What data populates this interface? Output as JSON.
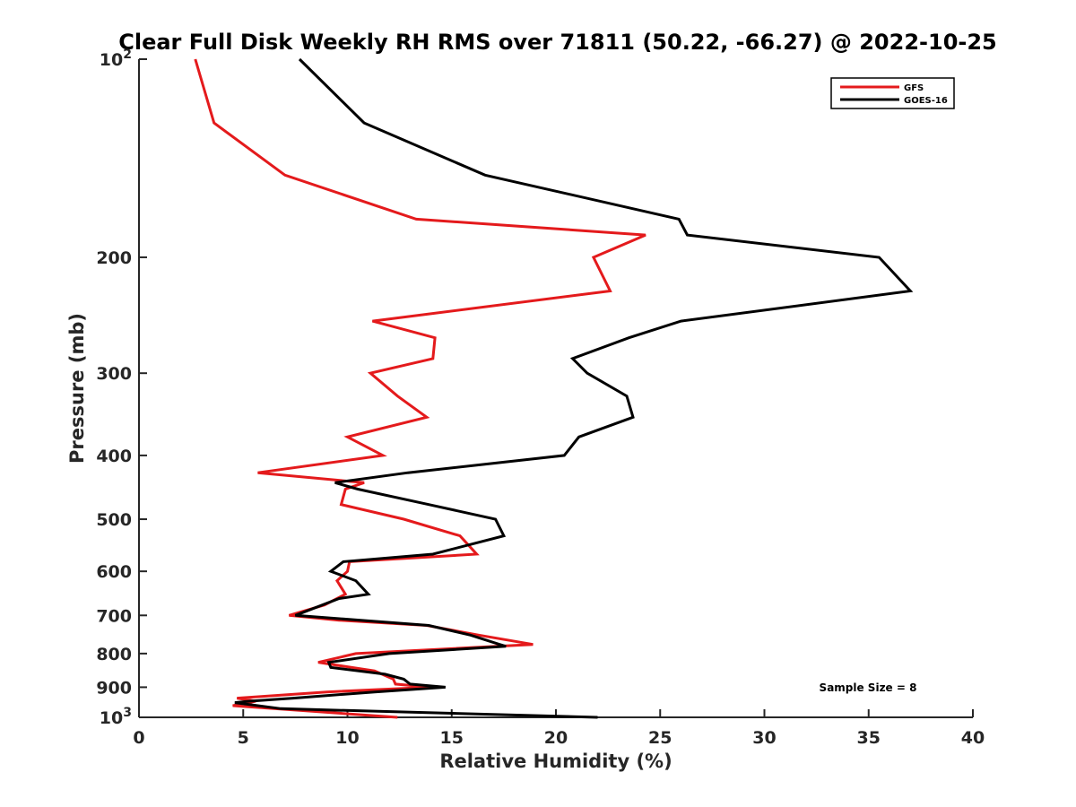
{
  "chart_data": {
    "type": "line",
    "title": "Clear Full Disk Weekly RH RMS over 71811 (50.22, -66.27) @ 2022-10-25",
    "xlabel": "Relative Humidity (%)",
    "ylabel": "Pressure (mb)",
    "xlim": [
      0,
      40
    ],
    "ylim": [
      100,
      1000
    ],
    "y_scale": "log",
    "y_reversed": true,
    "x_ticks": [
      "0",
      "5",
      "10",
      "15",
      "20",
      "25",
      "30",
      "35",
      "40"
    ],
    "y_ticks": [
      {
        "value": 100,
        "base": "10",
        "exp": "2"
      },
      {
        "value": 200,
        "label": "200"
      },
      {
        "value": 300,
        "label": "300"
      },
      {
        "value": 400,
        "label": "400"
      },
      {
        "value": 500,
        "label": "500"
      },
      {
        "value": 600,
        "label": "600"
      },
      {
        "value": 700,
        "label": "700"
      },
      {
        "value": 800,
        "label": "800"
      },
      {
        "value": 900,
        "label": "900"
      },
      {
        "value": 1000,
        "base": "10",
        "exp": "3"
      }
    ],
    "legend_position": "top-right",
    "annotation": "Sample Size = 8",
    "series": [
      {
        "name": "GFS",
        "color": "#e41a1c",
        "points": [
          [
            2.7,
            100
          ],
          [
            3.6,
            125
          ],
          [
            7.0,
            150
          ],
          [
            13.3,
            175
          ],
          [
            24.3,
            185
          ],
          [
            21.8,
            200
          ],
          [
            22.6,
            225
          ],
          [
            11.2,
            250
          ],
          [
            14.2,
            265
          ],
          [
            14.1,
            285
          ],
          [
            11.1,
            300
          ],
          [
            12.4,
            325
          ],
          [
            13.8,
            350
          ],
          [
            10.0,
            375
          ],
          [
            11.7,
            400
          ],
          [
            5.7,
            425
          ],
          [
            10.8,
            440
          ],
          [
            9.9,
            450
          ],
          [
            9.7,
            475
          ],
          [
            12.7,
            500
          ],
          [
            15.4,
            530
          ],
          [
            16.2,
            565
          ],
          [
            10.1,
            580
          ],
          [
            10.0,
            600
          ],
          [
            9.5,
            620
          ],
          [
            9.9,
            650
          ],
          [
            9.5,
            660
          ],
          [
            8.9,
            675
          ],
          [
            7.2,
            700
          ],
          [
            9.6,
            712
          ],
          [
            13.8,
            725
          ],
          [
            16.3,
            750
          ],
          [
            18.9,
            775
          ],
          [
            10.4,
            800
          ],
          [
            8.6,
            825
          ],
          [
            11.3,
            850
          ],
          [
            12.2,
            875
          ],
          [
            12.3,
            890
          ],
          [
            14.0,
            900
          ],
          [
            9.0,
            915
          ],
          [
            4.7,
            935
          ],
          [
            5.6,
            945
          ],
          [
            4.5,
            960
          ],
          [
            12.4,
            1000
          ]
        ]
      },
      {
        "name": "GOES-16",
        "color": "#000000",
        "points": [
          [
            7.7,
            100
          ],
          [
            10.8,
            125
          ],
          [
            16.6,
            150
          ],
          [
            25.9,
            175
          ],
          [
            26.3,
            185
          ],
          [
            35.5,
            200
          ],
          [
            37.0,
            225
          ],
          [
            26.0,
            250
          ],
          [
            23.5,
            265
          ],
          [
            20.8,
            285
          ],
          [
            21.5,
            300
          ],
          [
            23.4,
            325
          ],
          [
            23.7,
            350
          ],
          [
            21.1,
            375
          ],
          [
            20.4,
            400
          ],
          [
            12.9,
            425
          ],
          [
            9.4,
            440
          ],
          [
            10.5,
            450
          ],
          [
            13.9,
            475
          ],
          [
            17.1,
            500
          ],
          [
            17.5,
            530
          ],
          [
            14.1,
            565
          ],
          [
            9.8,
            580
          ],
          [
            9.2,
            600
          ],
          [
            10.4,
            620
          ],
          [
            11.0,
            650
          ],
          [
            9.6,
            660
          ],
          [
            7.5,
            700
          ],
          [
            13.9,
            725
          ],
          [
            15.9,
            750
          ],
          [
            17.3,
            775
          ],
          [
            17.6,
            780
          ],
          [
            12.0,
            800
          ],
          [
            9.1,
            825
          ],
          [
            9.2,
            840
          ],
          [
            11.8,
            860
          ],
          [
            12.7,
            875
          ],
          [
            13.0,
            890
          ],
          [
            14.7,
            900
          ],
          [
            11.3,
            915
          ],
          [
            7.4,
            935
          ],
          [
            5.3,
            945
          ],
          [
            4.6,
            950
          ],
          [
            6.8,
            970
          ],
          [
            22.0,
            1000
          ]
        ]
      }
    ]
  }
}
